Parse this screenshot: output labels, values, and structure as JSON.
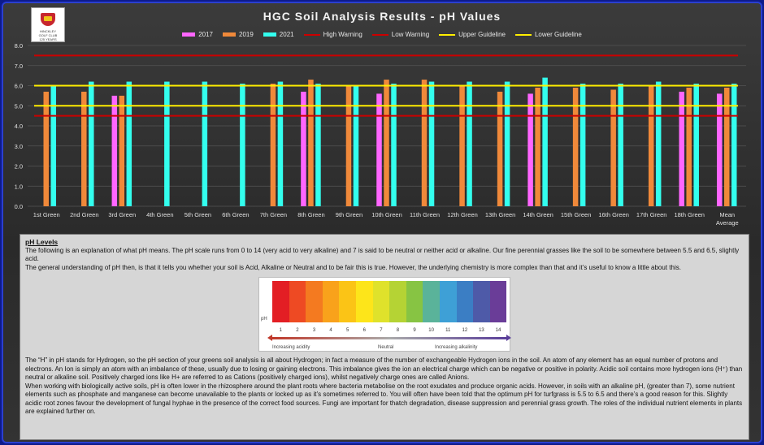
{
  "title": "HGC Soil Analysis Results - pH Values",
  "logo": {
    "text": "HINCKLEY GOLF CLUB 125 YEARS"
  },
  "legend": [
    {
      "label": "2017",
      "color": "#ff66ff",
      "kind": "bar"
    },
    {
      "label": "2019",
      "color": "#f0893a",
      "kind": "bar"
    },
    {
      "label": "2021",
      "color": "#33ffee",
      "kind": "bar"
    },
    {
      "label": "High Warning",
      "color": "#cc0000",
      "kind": "line"
    },
    {
      "label": "Low Warning",
      "color": "#cc0000",
      "kind": "line"
    },
    {
      "label": "Upper Guideline",
      "color": "#ffee00",
      "kind": "line"
    },
    {
      "label": "Lower Guideline",
      "color": "#ffee00",
      "kind": "line"
    }
  ],
  "chart_data": {
    "type": "bar",
    "title": "HGC Soil Analysis Results - pH Values",
    "categories": [
      "1st Green",
      "2nd Green",
      "3rd Green",
      "4th Green",
      "5th Green",
      "6th Green",
      "7th Green",
      "8th Green",
      "9th Green",
      "10th Green",
      "11th Green",
      "12th Green",
      "13th Green",
      "14th Green",
      "15th Green",
      "16th Green",
      "17th Green",
      "18th Green",
      "Mean Average"
    ],
    "series": [
      {
        "name": "2017",
        "color": "#ff66ff",
        "values": [
          null,
          null,
          5.5,
          null,
          null,
          null,
          null,
          5.7,
          null,
          5.6,
          null,
          null,
          null,
          5.6,
          null,
          null,
          null,
          5.7,
          5.6
        ]
      },
      {
        "name": "2019",
        "color": "#f0893a",
        "values": [
          5.7,
          5.7,
          5.5,
          null,
          null,
          null,
          6.1,
          6.3,
          6.0,
          6.3,
          6.3,
          6.0,
          5.7,
          5.9,
          5.9,
          5.8,
          6.0,
          5.9,
          5.9
        ]
      },
      {
        "name": "2021",
        "color": "#33ffee",
        "values": [
          6.0,
          6.2,
          6.2,
          6.2,
          6.2,
          6.1,
          6.2,
          6.1,
          6.0,
          6.1,
          6.2,
          6.2,
          6.2,
          6.4,
          6.1,
          6.1,
          6.2,
          6.1,
          6.1
        ]
      }
    ],
    "reference_lines": [
      {
        "name": "High Warning",
        "value": 7.5,
        "color": "#cc0000"
      },
      {
        "name": "Low Warning",
        "value": 4.5,
        "color": "#cc0000"
      },
      {
        "name": "Upper Guideline",
        "value": 6.0,
        "color": "#ffee00"
      },
      {
        "name": "Lower Guideline",
        "value": 5.0,
        "color": "#ffee00"
      }
    ],
    "ylim": [
      0,
      8
    ],
    "yticks": [
      "0.0",
      "1.0",
      "2.0",
      "3.0",
      "4.0",
      "5.0",
      "6.0",
      "7.0",
      "8.0"
    ],
    "grid": true,
    "legend_position": "top"
  },
  "info": {
    "heading": "pH Levels",
    "para1": "The following is an explanation of what pH means. The pH scale runs from 0 to 14 (very acid to very alkaline) and 7 is said to be neutral or neither acid or alkaline. Our fine perennial grasses like the soil to be somewhere between 5.5 and 6.5, slightly acid.",
    "para2": "The general understanding of pH then, is that it tells you whether your soil is Acid, Alkaline or Neutral and to be fair this is true. However, the underlying chemistry is more complex than that and it’s useful to know a little about this.",
    "para3": "The “H” in pH stands for Hydrogen, so the pH section of your greens soil analysis is all about Hydrogen; in fact a measure of the number of exchangeable Hydrogen ions in the soil. An atom of any element has an equal number of protons and electrons. An Ion is simply an atom with an imbalance of these, usually due to losing or gaining electrons. This imbalance gives the ion an electrical charge which can be negative or positive in polarity. Acidic soil contains more hydrogen ions (H⁺) than neutral or alkaline soil. Positively charged ions like H+ are referred to as Cations (positively charged ions), whilst negatively charge ones are called Anions.",
    "para4": "When working with biologically active soils, pH is often lower in the rhizosphere around the plant roots where bacteria metabolise on the root exudates and produce organic acids. However, in soils with an alkaline pH, (greater than 7), some nutrient elements such as phosphate and manganese can become unavailable to the plants or locked up as it’s sometimes referred to. You will often have been told that the optimum pH for turfgrass is 5.5 to 6.5 and there’s a good reason for this. Slightly acidic root zones favour the development of fungal hyphae in the presence of the correct food sources. Fungi are important for thatch degradation, disease suppression and perennial grass growth. The roles of the individual nutrient elements in plants are explained further on."
  },
  "ph_scale": {
    "axis_label": "pH",
    "numbers": [
      "1",
      "2",
      "3",
      "4",
      "5",
      "6",
      "7",
      "8",
      "9",
      "10",
      "11",
      "12",
      "13",
      "14"
    ],
    "colors": [
      "#e31e24",
      "#ee4a23",
      "#f47a20",
      "#f9a21b",
      "#fbc416",
      "#fde51a",
      "#dfe22b",
      "#b5d334",
      "#87c443",
      "#5ab39a",
      "#3ea0d6",
      "#3b7ec4",
      "#4e5aa8",
      "#6a3d98"
    ],
    "increasing_acidity": "Increasing acidity",
    "neutral": "Neutral",
    "increasing_alkalinity": "Increasing alkalinity"
  }
}
